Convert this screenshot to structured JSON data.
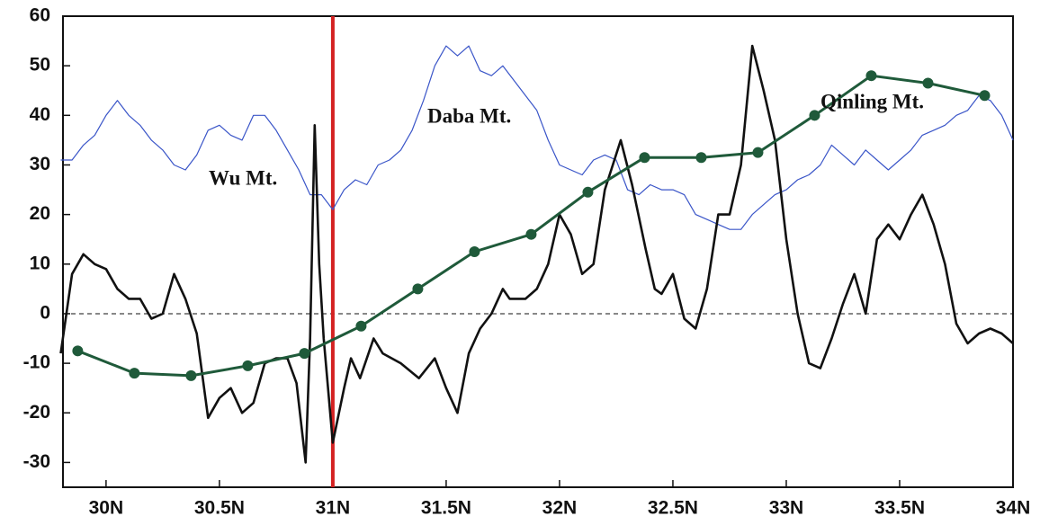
{
  "chart_data": {
    "type": "line",
    "xlim": [
      29.81,
      34
    ],
    "ylim": [
      -35,
      60
    ],
    "xticks": [
      {
        "value": 30,
        "label": "30N"
      },
      {
        "value": 30.5,
        "label": "30.5N"
      },
      {
        "value": 31,
        "label": "31N"
      },
      {
        "value": 31.5,
        "label": "31.5N"
      },
      {
        "value": 32,
        "label": "32N"
      },
      {
        "value": 32.5,
        "label": "32.5N"
      },
      {
        "value": 33,
        "label": "33N"
      },
      {
        "value": 33.5,
        "label": "33.5N"
      },
      {
        "value": 34,
        "label": "34N"
      }
    ],
    "yticks": [
      60,
      50,
      40,
      30,
      20,
      10,
      0,
      -10,
      -20,
      -30
    ],
    "hline": 0,
    "vline": {
      "value": 31,
      "color": "#d42222"
    },
    "annotations": [
      "Wu Mt.",
      "Daba Mt.",
      "Qinling Mt."
    ],
    "series": [
      {
        "color": "#3a55c8",
        "width": 1.2,
        "markers": false,
        "x": [
          29.8,
          29.85,
          29.9,
          29.95,
          30.0,
          30.05,
          30.1,
          30.15,
          30.2,
          30.25,
          30.3,
          30.35,
          30.4,
          30.45,
          30.5,
          30.55,
          30.6,
          30.65,
          30.7,
          30.75,
          30.8,
          30.85,
          30.9,
          30.95,
          31.0,
          31.05,
          31.1,
          31.15,
          31.2,
          31.25,
          31.3,
          31.35,
          31.4,
          31.45,
          31.5,
          31.55,
          31.6,
          31.65,
          31.7,
          31.75,
          31.8,
          31.85,
          31.9,
          31.95,
          32.0,
          32.05,
          32.1,
          32.15,
          32.2,
          32.25,
          32.3,
          32.35,
          32.4,
          32.45,
          32.5,
          32.55,
          32.6,
          32.65,
          32.7,
          32.75,
          32.8,
          32.85,
          32.9,
          32.95,
          33.0,
          33.05,
          33.1,
          33.15,
          33.2,
          33.25,
          33.3,
          33.35,
          33.4,
          33.45,
          33.5,
          33.55,
          33.6,
          33.65,
          33.7,
          33.75,
          33.8,
          33.85,
          33.9,
          33.95,
          34.0
        ],
        "values": [
          31,
          31,
          34,
          36,
          40,
          43,
          40,
          38,
          35,
          33,
          30,
          29,
          32,
          37,
          38,
          36,
          35,
          40,
          40,
          37,
          33,
          29,
          24,
          24,
          21,
          25,
          27,
          26,
          30,
          31,
          33,
          37,
          43,
          50,
          54,
          52,
          54,
          49,
          48,
          50,
          47,
          44,
          41,
          35,
          30,
          29,
          28,
          31,
          32,
          31,
          25,
          24,
          26,
          25,
          25,
          24,
          20,
          19,
          18,
          17,
          17,
          20,
          22,
          24,
          25,
          27,
          28,
          30,
          34,
          32,
          30,
          33,
          31,
          29,
          31,
          33,
          36,
          37,
          38,
          40,
          41,
          44,
          43,
          40,
          35
        ]
      },
      {
        "color": "#111111",
        "width": 2.6,
        "markers": false,
        "x": [
          29.8,
          29.85,
          29.9,
          29.95,
          30.0,
          30.05,
          30.1,
          30.15,
          30.2,
          30.25,
          30.3,
          30.35,
          30.4,
          30.45,
          30.5,
          30.55,
          30.6,
          30.65,
          30.7,
          30.75,
          30.8,
          30.84,
          30.88,
          30.9,
          30.92,
          30.94,
          30.96,
          31.0,
          31.05,
          31.08,
          31.12,
          31.18,
          31.22,
          31.3,
          31.38,
          31.45,
          31.5,
          31.55,
          31.6,
          31.65,
          31.7,
          31.75,
          31.78,
          31.85,
          31.9,
          31.95,
          32.0,
          32.05,
          32.1,
          32.15,
          32.2,
          32.27,
          32.32,
          32.38,
          32.42,
          32.45,
          32.5,
          32.55,
          32.6,
          32.65,
          32.7,
          32.75,
          32.8,
          32.85,
          32.9,
          32.95,
          33.0,
          33.05,
          33.1,
          33.15,
          33.2,
          33.25,
          33.3,
          33.35,
          33.4,
          33.45,
          33.5,
          33.55,
          33.6,
          33.65,
          33.7,
          33.75,
          33.8,
          33.85,
          33.9,
          33.95,
          34.0
        ],
        "values": [
          -8,
          8,
          12,
          10,
          9,
          5,
          3,
          3,
          -1,
          0,
          8,
          3,
          -4,
          -21,
          -17,
          -15,
          -20,
          -18,
          -10,
          -9,
          -9,
          -14,
          -30,
          -5,
          38,
          10,
          -5,
          -26,
          -15,
          -9,
          -13,
          -5,
          -8,
          -10,
          -13,
          -9,
          -15,
          -20,
          -8,
          -3,
          0,
          5,
          3,
          3,
          5,
          10,
          20,
          16,
          8,
          10,
          25,
          35,
          26,
          13,
          5,
          4,
          8,
          -1,
          -3,
          5,
          20,
          20,
          30,
          54,
          45,
          35,
          15,
          0,
          -10,
          -11,
          -5,
          2,
          8,
          0,
          15,
          18,
          15,
          20,
          24,
          18,
          10,
          -2,
          -6,
          -4,
          -3,
          -4,
          -6
        ]
      },
      {
        "color": "#1f5a3a",
        "width": 3,
        "markers": true,
        "x": [
          29.875,
          30.125,
          30.375,
          30.625,
          30.875,
          31.125,
          31.375,
          31.625,
          31.875,
          32.125,
          32.375,
          32.625,
          32.875,
          33.125,
          33.375,
          33.625,
          33.875
        ],
        "values": [
          -7.5,
          -12,
          -12.5,
          -10.5,
          -8,
          -2.5,
          5,
          12.5,
          16,
          24.5,
          31.5,
          31.5,
          32.5,
          40,
          48,
          46.5,
          44
        ]
      }
    ]
  }
}
